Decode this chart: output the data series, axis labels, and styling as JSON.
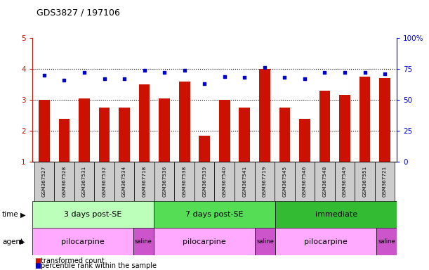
{
  "title": "GDS3827 / 197106",
  "samples": [
    "GSM367527",
    "GSM367528",
    "GSM367531",
    "GSM367532",
    "GSM367534",
    "GSM367718",
    "GSM367536",
    "GSM367538",
    "GSM367539",
    "GSM367540",
    "GSM367541",
    "GSM367719",
    "GSM367545",
    "GSM367546",
    "GSM367548",
    "GSM367549",
    "GSM367551",
    "GSM367721"
  ],
  "red_values": [
    3.0,
    2.4,
    3.05,
    2.75,
    2.75,
    3.5,
    3.05,
    3.6,
    1.85,
    3.0,
    2.75,
    4.0,
    2.75,
    2.4,
    3.3,
    3.15,
    3.75,
    3.7
  ],
  "blue_values": [
    70,
    66,
    72,
    67,
    67,
    74,
    72,
    74,
    63,
    69,
    68,
    76,
    68,
    67,
    72,
    72,
    72,
    71
  ],
  "ylim_left": [
    1,
    5
  ],
  "ylim_right": [
    0,
    100
  ],
  "yticks_left": [
    1,
    2,
    3,
    4,
    5
  ],
  "yticks_right": [
    0,
    25,
    50,
    75,
    100
  ],
  "time_groups": [
    {
      "label": "3 days post-SE",
      "start": 0,
      "end": 6,
      "color": "#bbffbb"
    },
    {
      "label": "7 days post-SE",
      "start": 6,
      "end": 12,
      "color": "#55dd55"
    },
    {
      "label": "immediate",
      "start": 12,
      "end": 18,
      "color": "#33bb33"
    }
  ],
  "agent_groups": [
    {
      "label": "pilocarpine",
      "start": 0,
      "end": 5,
      "color": "#ffaaff"
    },
    {
      "label": "saline",
      "start": 5,
      "end": 6,
      "color": "#cc55cc"
    },
    {
      "label": "pilocarpine",
      "start": 6,
      "end": 11,
      "color": "#ffaaff"
    },
    {
      "label": "saline",
      "start": 11,
      "end": 12,
      "color": "#cc55cc"
    },
    {
      "label": "pilocarpine",
      "start": 12,
      "end": 17,
      "color": "#ffaaff"
    },
    {
      "label": "saline",
      "start": 17,
      "end": 18,
      "color": "#cc55cc"
    }
  ],
  "red_color": "#cc1100",
  "blue_color": "#0000cc",
  "bar_width": 0.55,
  "legend_red": "transformed count",
  "legend_blue": "percentile rank within the sample",
  "background_color": "#ffffff",
  "grid_color": "#000000"
}
